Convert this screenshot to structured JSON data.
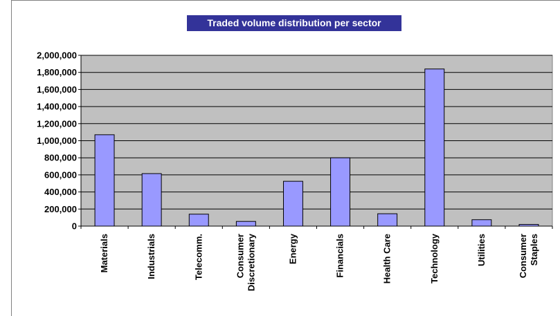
{
  "chart_data": {
    "type": "bar",
    "title": "Traded volume distribution per sector",
    "categories": [
      "Materials",
      "Industrials",
      "Telecomm.",
      "Consumer Discretionary",
      "Energy",
      "Financials",
      "Health Care",
      "Technology",
      "Utilities",
      "Consumer Staples"
    ],
    "category_lines": [
      [
        "Materials"
      ],
      [
        "Industrials"
      ],
      [
        "Telecomm."
      ],
      [
        "Consumer",
        "Discretionary"
      ],
      [
        "Energy"
      ],
      [
        "Financials"
      ],
      [
        "Health Care"
      ],
      [
        "Technology"
      ],
      [
        "Utilities"
      ],
      [
        "Consumer",
        "Staples"
      ]
    ],
    "values": [
      1070000,
      615000,
      140000,
      55000,
      525000,
      800000,
      145000,
      1840000,
      75000,
      20000
    ],
    "ylim": [
      0,
      2000000
    ],
    "yticks": [
      "0",
      "200,000",
      "400,000",
      "600,000",
      "800,000",
      "1,000,000",
      "1,200,000",
      "1,400,000",
      "1,600,000",
      "1,800,000",
      "2,000,000"
    ],
    "xlabel": "",
    "ylabel": "",
    "grid": true,
    "colors": {
      "bar": "#9999ff",
      "bar_edge": "#000000",
      "plot_bg": "#c0c0c0",
      "title_bg": "#333399",
      "title_fg": "#ffffff"
    }
  }
}
